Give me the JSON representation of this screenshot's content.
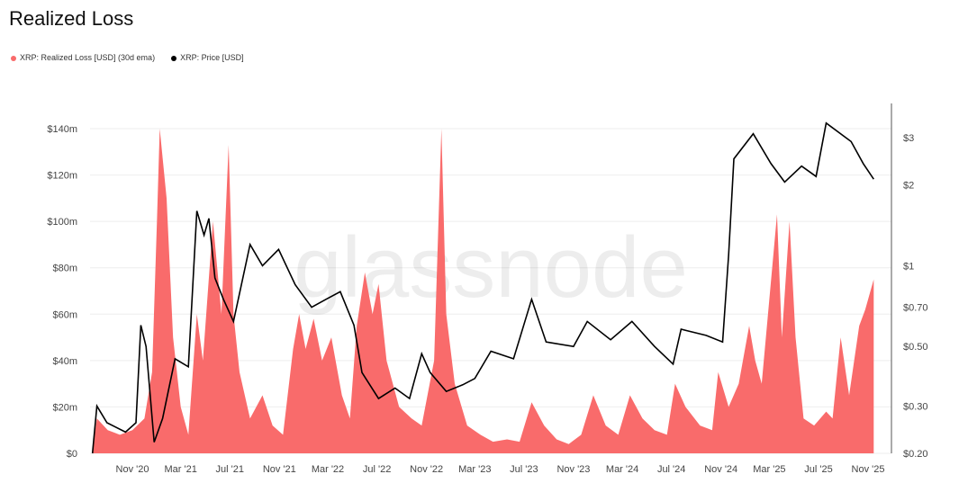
{
  "title": "Realized Loss",
  "chart_data": {
    "type": "area+line",
    "title": "Realized Loss",
    "watermark": "glassnode",
    "legend_position": "top-left",
    "grid": true,
    "x_ticks": [
      "Nov '20",
      "Mar '21",
      "Jul '21",
      "Nov '21",
      "Mar '22",
      "Jul '22",
      "Nov '22",
      "Mar '23",
      "Jul '23",
      "Nov '23",
      "Mar '24",
      "Jul '24",
      "Nov '24",
      "Mar '25",
      "Jul '25",
      "Nov '25"
    ],
    "x_tick_dates": [
      "2020-11-01",
      "2021-03-01",
      "2021-07-01",
      "2021-11-01",
      "2022-03-01",
      "2022-07-01",
      "2022-11-01",
      "2023-03-01",
      "2023-07-01",
      "2023-11-01",
      "2024-03-01",
      "2024-07-01",
      "2024-11-01",
      "2025-03-01",
      "2025-07-01",
      "2025-11-01"
    ],
    "y_left": {
      "ticks": [
        "$0",
        "$20m",
        "$40m",
        "$60m",
        "$80m",
        "$100m",
        "$120m",
        "$140m"
      ],
      "values": [
        0,
        20,
        40,
        60,
        80,
        100,
        120,
        140
      ],
      "unit": "USD millions",
      "range": [
        0,
        140
      ]
    },
    "y_right": {
      "scale": "log",
      "ticks": [
        "$0.20",
        "$0.30",
        "$0.50",
        "$0.70",
        "$1",
        "$2",
        "$3"
      ],
      "values": [
        0.2,
        0.3,
        0.5,
        0.7,
        1,
        2,
        3
      ],
      "range": [
        0.2,
        3
      ]
    },
    "series": [
      {
        "name": "XRP: Realized Loss [USD] (30d ema)",
        "type": "area",
        "axis": "left",
        "color": "#f96b6b",
        "points": [
          [
            "2020-07-25",
            2
          ],
          [
            "2020-08-05",
            15
          ],
          [
            "2020-09-01",
            10
          ],
          [
            "2020-10-01",
            8
          ],
          [
            "2020-11-01",
            10
          ],
          [
            "2020-12-01",
            15
          ],
          [
            "2020-12-20",
            35
          ],
          [
            "2021-01-01",
            100
          ],
          [
            "2021-01-08",
            140
          ],
          [
            "2021-01-25",
            110
          ],
          [
            "2021-02-10",
            50
          ],
          [
            "2021-03-01",
            20
          ],
          [
            "2021-03-20",
            8
          ],
          [
            "2021-04-10",
            60
          ],
          [
            "2021-04-25",
            40
          ],
          [
            "2021-05-20",
            100
          ],
          [
            "2021-06-10",
            60
          ],
          [
            "2021-06-28",
            133
          ],
          [
            "2021-07-10",
            60
          ],
          [
            "2021-07-25",
            35
          ],
          [
            "2021-08-20",
            15
          ],
          [
            "2021-09-20",
            25
          ],
          [
            "2021-10-15",
            12
          ],
          [
            "2021-11-10",
            8
          ],
          [
            "2021-12-05",
            45
          ],
          [
            "2021-12-20",
            60
          ],
          [
            "2022-01-05",
            45
          ],
          [
            "2022-01-25",
            58
          ],
          [
            "2022-02-15",
            40
          ],
          [
            "2022-03-10",
            50
          ],
          [
            "2022-04-05",
            25
          ],
          [
            "2022-04-25",
            15
          ],
          [
            "2022-05-12",
            55
          ],
          [
            "2022-06-01",
            78
          ],
          [
            "2022-06-20",
            60
          ],
          [
            "2022-07-05",
            73
          ],
          [
            "2022-07-25",
            40
          ],
          [
            "2022-08-25",
            20
          ],
          [
            "2022-09-25",
            15
          ],
          [
            "2022-10-20",
            12
          ],
          [
            "2022-11-20",
            40
          ],
          [
            "2022-12-08",
            140
          ],
          [
            "2022-12-20",
            60
          ],
          [
            "2023-01-10",
            30
          ],
          [
            "2023-02-10",
            12
          ],
          [
            "2023-03-15",
            8
          ],
          [
            "2023-04-15",
            5
          ],
          [
            "2023-05-20",
            6
          ],
          [
            "2023-06-20",
            5
          ],
          [
            "2023-07-20",
            22
          ],
          [
            "2023-08-20",
            12
          ],
          [
            "2023-09-20",
            6
          ],
          [
            "2023-10-20",
            4
          ],
          [
            "2023-11-20",
            8
          ],
          [
            "2023-12-20",
            25
          ],
          [
            "2024-01-20",
            12
          ],
          [
            "2024-02-20",
            8
          ],
          [
            "2024-03-20",
            25
          ],
          [
            "2024-04-20",
            15
          ],
          [
            "2024-05-20",
            10
          ],
          [
            "2024-06-20",
            8
          ],
          [
            "2024-07-10",
            30
          ],
          [
            "2024-08-05",
            20
          ],
          [
            "2024-09-10",
            12
          ],
          [
            "2024-10-10",
            10
          ],
          [
            "2024-10-25",
            35
          ],
          [
            "2024-11-20",
            20
          ],
          [
            "2024-12-15",
            30
          ],
          [
            "2025-01-10",
            55
          ],
          [
            "2025-01-25",
            40
          ],
          [
            "2025-02-10",
            30
          ],
          [
            "2025-03-20",
            103
          ],
          [
            "2025-04-01",
            50
          ],
          [
            "2025-04-20",
            100
          ],
          [
            "2025-05-05",
            50
          ],
          [
            "2025-05-25",
            15
          ],
          [
            "2025-06-20",
            12
          ],
          [
            "2025-07-20",
            18
          ],
          [
            "2025-08-05",
            15
          ],
          [
            "2025-08-25",
            50
          ],
          [
            "2025-09-15",
            25
          ],
          [
            "2025-10-10",
            55
          ],
          [
            "2025-10-25",
            62
          ],
          [
            "2025-11-15",
            75
          ]
        ]
      },
      {
        "name": "XRP: Price [USD]",
        "type": "line",
        "axis": "right",
        "color": "#000000",
        "points": [
          [
            "2020-07-25",
            0.2
          ],
          [
            "2020-08-05",
            0.3
          ],
          [
            "2020-08-30",
            0.26
          ],
          [
            "2020-10-15",
            0.24
          ],
          [
            "2020-11-10",
            0.26
          ],
          [
            "2020-11-22",
            0.6
          ],
          [
            "2020-12-05",
            0.5
          ],
          [
            "2020-12-25",
            0.22
          ],
          [
            "2021-01-15",
            0.27
          ],
          [
            "2021-02-15",
            0.45
          ],
          [
            "2021-03-20",
            0.42
          ],
          [
            "2021-04-10",
            1.6
          ],
          [
            "2021-04-28",
            1.3
          ],
          [
            "2021-05-10",
            1.5
          ],
          [
            "2021-05-25",
            0.9
          ],
          [
            "2021-06-15",
            0.75
          ],
          [
            "2021-07-10",
            0.62
          ],
          [
            "2021-08-20",
            1.2
          ],
          [
            "2021-09-20",
            1.0
          ],
          [
            "2021-10-30",
            1.15
          ],
          [
            "2021-12-10",
            0.85
          ],
          [
            "2022-01-20",
            0.7
          ],
          [
            "2022-02-25",
            0.75
          ],
          [
            "2022-04-01",
            0.8
          ],
          [
            "2022-05-05",
            0.6
          ],
          [
            "2022-05-25",
            0.4
          ],
          [
            "2022-07-05",
            0.32
          ],
          [
            "2022-08-15",
            0.35
          ],
          [
            "2022-09-20",
            0.32
          ],
          [
            "2022-10-20",
            0.47
          ],
          [
            "2022-11-10",
            0.4
          ],
          [
            "2022-12-20",
            0.34
          ],
          [
            "2023-01-30",
            0.36
          ],
          [
            "2023-03-01",
            0.38
          ],
          [
            "2023-04-10",
            0.48
          ],
          [
            "2023-06-05",
            0.45
          ],
          [
            "2023-07-20",
            0.75
          ],
          [
            "2023-08-25",
            0.52
          ],
          [
            "2023-11-01",
            0.5
          ],
          [
            "2023-12-05",
            0.62
          ],
          [
            "2024-02-01",
            0.53
          ],
          [
            "2024-03-25",
            0.62
          ],
          [
            "2024-05-20",
            0.5
          ],
          [
            "2024-07-05",
            0.43
          ],
          [
            "2024-07-25",
            0.58
          ],
          [
            "2024-09-25",
            0.55
          ],
          [
            "2024-11-05",
            0.52
          ],
          [
            "2024-11-20",
            1.1
          ],
          [
            "2024-12-03",
            2.5
          ],
          [
            "2025-01-20",
            3.1
          ],
          [
            "2025-03-05",
            2.4
          ],
          [
            "2025-04-08",
            2.05
          ],
          [
            "2025-05-20",
            2.35
          ],
          [
            "2025-06-25",
            2.15
          ],
          [
            "2025-07-20",
            3.4
          ],
          [
            "2025-09-20",
            2.9
          ],
          [
            "2025-10-20",
            2.4
          ],
          [
            "2025-11-15",
            2.1
          ]
        ]
      }
    ]
  }
}
